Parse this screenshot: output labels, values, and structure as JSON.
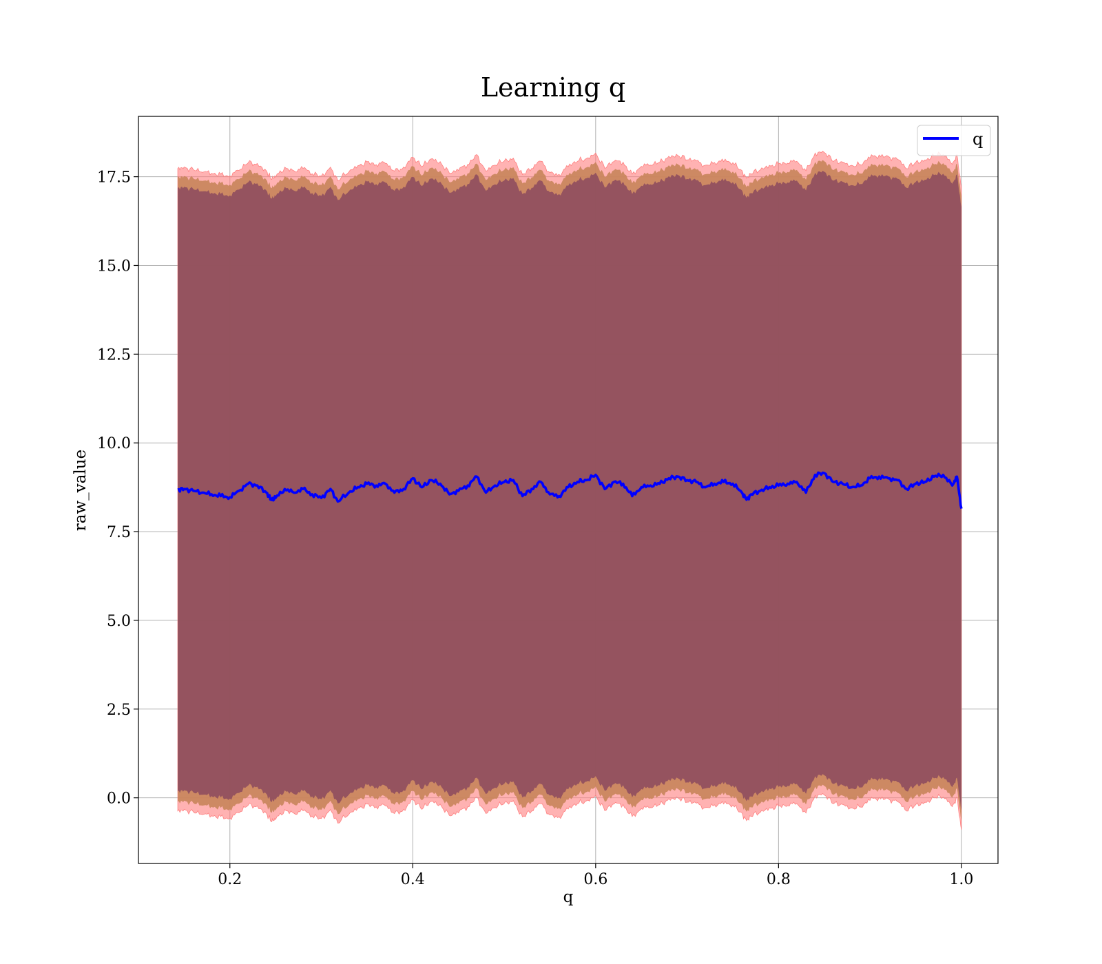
{
  "chart_data": {
    "type": "line",
    "title": "Learning q",
    "xlabel": "q",
    "ylabel": "raw_value",
    "xlim": [
      0.1,
      1.04
    ],
    "ylim": [
      -1.85,
      19.2
    ],
    "xticks": [
      0.2,
      0.4,
      0.6,
      0.8,
      1.0
    ],
    "xtick_labels": [
      "0.2",
      "0.4",
      "0.6",
      "0.8",
      "1.0"
    ],
    "yticks": [
      0.0,
      2.5,
      5.0,
      7.5,
      10.0,
      12.5,
      15.0,
      17.5
    ],
    "ytick_labels": [
      "0.0",
      "2.5",
      "5.0",
      "7.5",
      "10.0",
      "12.5",
      "15.0",
      "17.5"
    ],
    "grid": true,
    "legend": {
      "position": "top-right",
      "entries": [
        "q"
      ]
    },
    "colors": {
      "line": "#0000ff",
      "band_outer": "#ff7f7f",
      "band_middle": "#c8845a",
      "band_inner": "#8b4a5e"
    },
    "series": [
      {
        "name": "q",
        "x": [
          0.143,
          0.15,
          0.16,
          0.17,
          0.18,
          0.19,
          0.2,
          0.21,
          0.22,
          0.23,
          0.24,
          0.245,
          0.25,
          0.26,
          0.27,
          0.28,
          0.29,
          0.3,
          0.31,
          0.318,
          0.33,
          0.34,
          0.35,
          0.36,
          0.37,
          0.38,
          0.39,
          0.4,
          0.41,
          0.42,
          0.43,
          0.44,
          0.45,
          0.46,
          0.47,
          0.48,
          0.49,
          0.5,
          0.51,
          0.52,
          0.53,
          0.54,
          0.55,
          0.56,
          0.57,
          0.58,
          0.59,
          0.6,
          0.61,
          0.62,
          0.63,
          0.64,
          0.65,
          0.66,
          0.67,
          0.68,
          0.69,
          0.7,
          0.71,
          0.72,
          0.73,
          0.74,
          0.75,
          0.76,
          0.765,
          0.77,
          0.78,
          0.79,
          0.8,
          0.81,
          0.82,
          0.83,
          0.84,
          0.85,
          0.86,
          0.87,
          0.88,
          0.89,
          0.9,
          0.91,
          0.92,
          0.93,
          0.94,
          0.95,
          0.96,
          0.97,
          0.98,
          0.99,
          0.995,
          1.0
        ],
        "y": [
          8.68,
          8.7,
          8.65,
          8.6,
          8.55,
          8.5,
          8.47,
          8.65,
          8.85,
          8.8,
          8.6,
          8.4,
          8.45,
          8.7,
          8.6,
          8.7,
          8.55,
          8.45,
          8.7,
          8.35,
          8.6,
          8.75,
          8.85,
          8.8,
          8.85,
          8.6,
          8.7,
          9.0,
          8.75,
          8.95,
          8.85,
          8.55,
          8.65,
          8.8,
          9.05,
          8.6,
          8.8,
          8.9,
          8.95,
          8.5,
          8.7,
          8.9,
          8.55,
          8.5,
          8.75,
          8.9,
          8.95,
          9.1,
          8.7,
          8.9,
          8.85,
          8.5,
          8.75,
          8.8,
          8.85,
          9.0,
          9.05,
          8.95,
          8.9,
          8.75,
          8.85,
          8.9,
          8.85,
          8.6,
          8.4,
          8.55,
          8.65,
          8.75,
          8.8,
          8.85,
          8.9,
          8.6,
          9.1,
          9.15,
          8.9,
          8.85,
          8.75,
          8.8,
          9.0,
          9.05,
          9.0,
          8.95,
          8.7,
          8.85,
          8.9,
          9.05,
          9.1,
          8.8,
          9.05,
          8.15
        ]
      }
    ]
  }
}
